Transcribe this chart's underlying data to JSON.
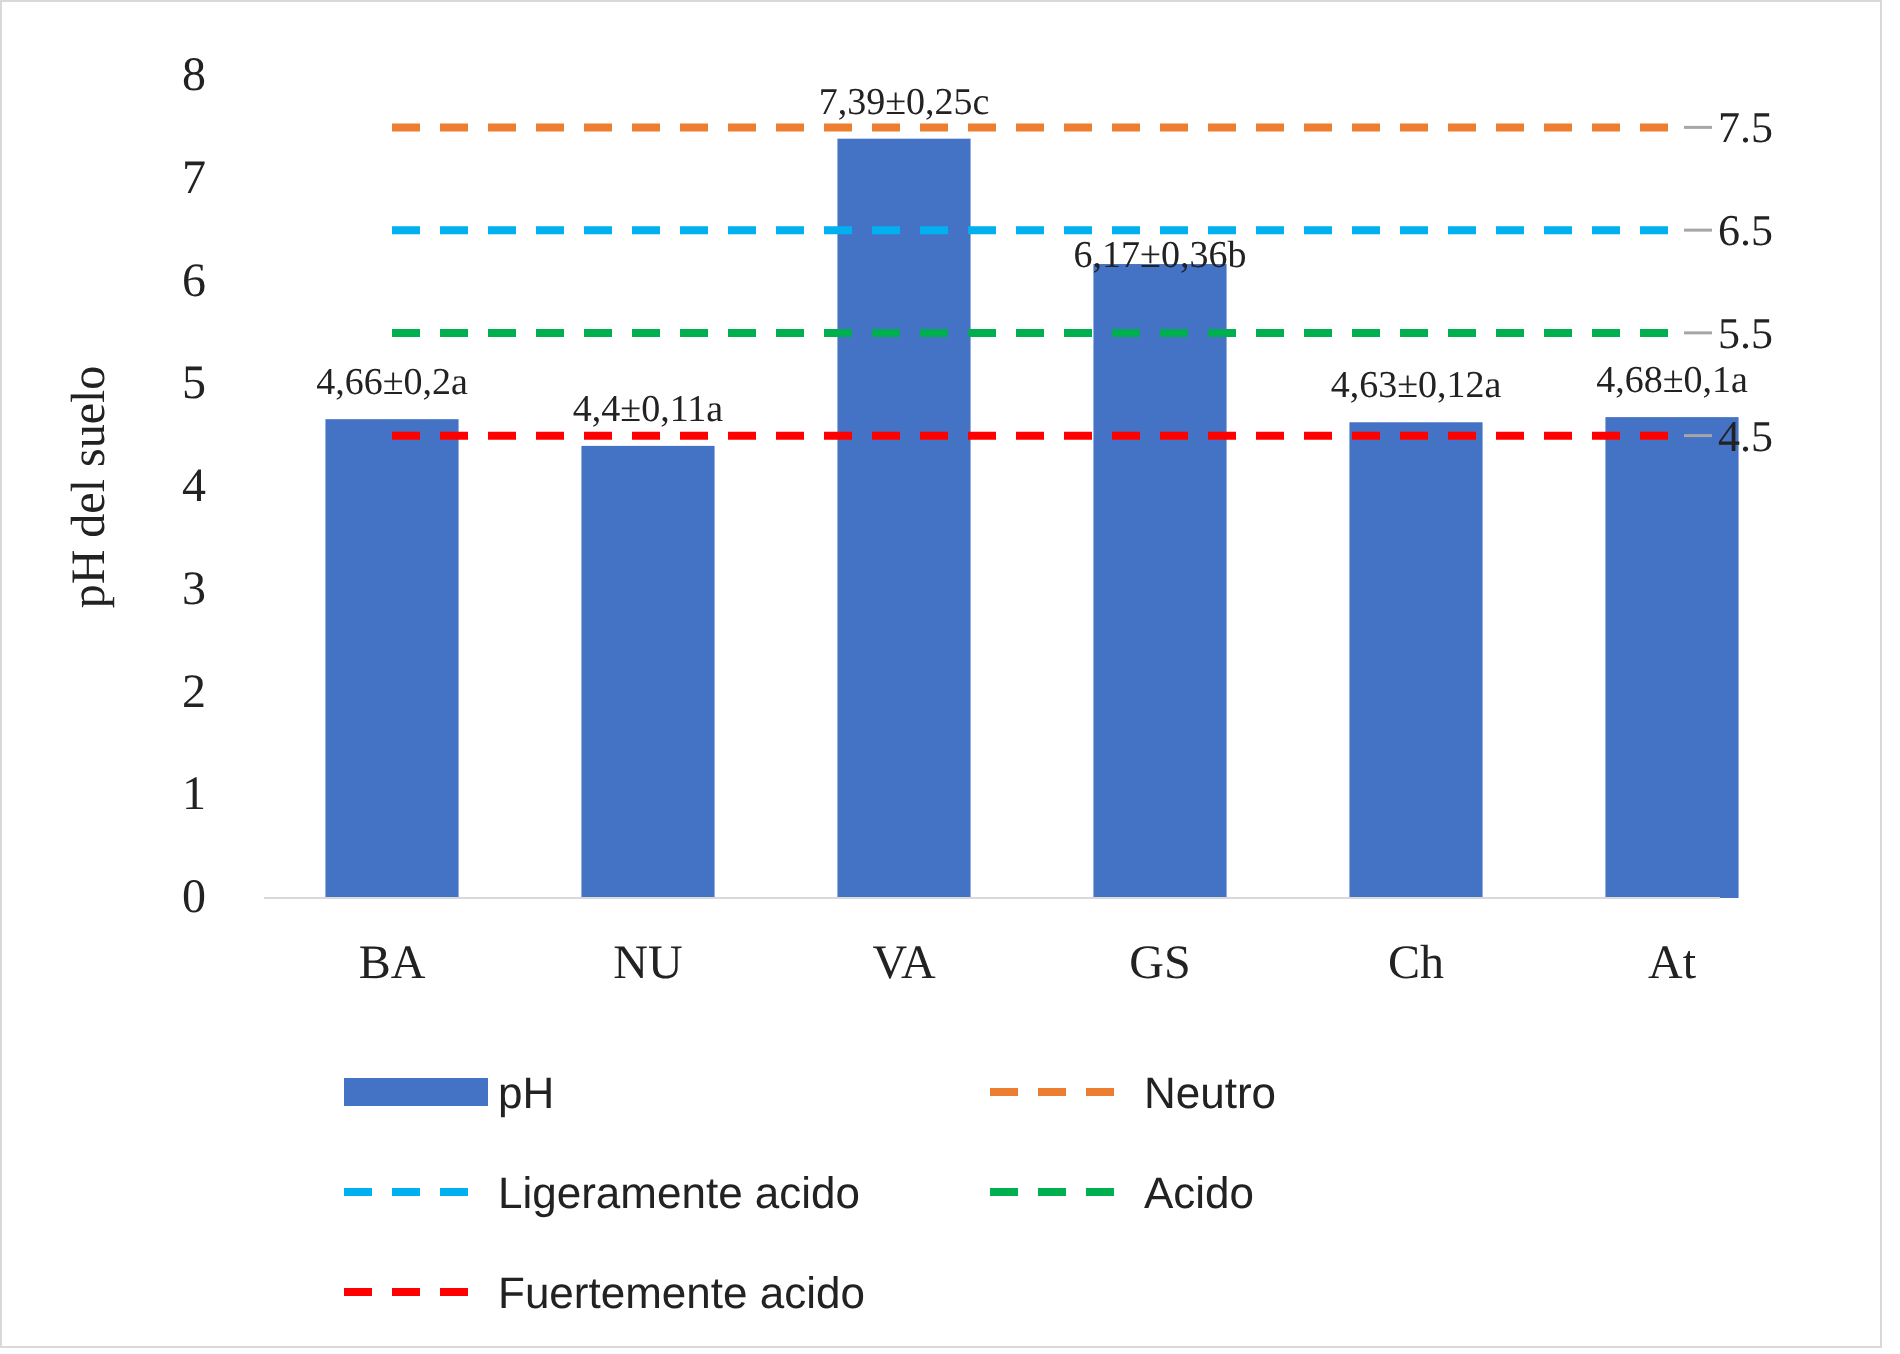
{
  "chart_data": {
    "type": "bar",
    "ylabel": "pH del suelo",
    "categories": [
      "BA",
      "NU",
      "VA",
      "GS",
      "Ch",
      "At"
    ],
    "ylim": [
      0,
      8
    ],
    "yticks": [
      0,
      1,
      2,
      3,
      4,
      5,
      6,
      7,
      8
    ],
    "legend": "bottom",
    "series": [
      {
        "name": "pH",
        "color": "#4472c4",
        "values": [
          4.66,
          4.4,
          7.39,
          6.17,
          4.63,
          4.68
        ],
        "value_labels": [
          "4,66±0,2a",
          "4,4±0,11a",
          "7,39±0,25c",
          "6,17±0,36b",
          "4,63±0,12a",
          "4,68±0,1a"
        ]
      },
      {
        "name": "Neutro",
        "type": "line",
        "line_style": "dashed",
        "color": "#ed7d31",
        "values": [
          7.5,
          7.5,
          7.5,
          7.5,
          7.5,
          7.5
        ],
        "value_labels": [
          null,
          null,
          null,
          null,
          null,
          "7.5"
        ]
      },
      {
        "name": "Ligeramente acido",
        "type": "line",
        "line_style": "dashed",
        "color": "#00b0f0",
        "values": [
          6.5,
          6.5,
          6.5,
          6.5,
          6.5,
          6.5
        ],
        "value_labels": [
          null,
          null,
          null,
          null,
          null,
          "6.5"
        ]
      },
      {
        "name": "Acido",
        "type": "line",
        "line_style": "dashed",
        "color": "#00b050",
        "values": [
          5.5,
          5.5,
          5.5,
          5.5,
          5.5,
          5.5
        ],
        "value_labels": [
          null,
          null,
          null,
          null,
          null,
          "5.5"
        ]
      },
      {
        "name": "Fuertemente acido",
        "type": "line",
        "line_style": "dashed",
        "color": "#ff0000",
        "values": [
          4.5,
          4.5,
          4.5,
          4.5,
          4.5,
          4.5
        ],
        "value_labels": [
          null,
          null,
          null,
          null,
          null,
          "4.5"
        ]
      }
    ]
  }
}
